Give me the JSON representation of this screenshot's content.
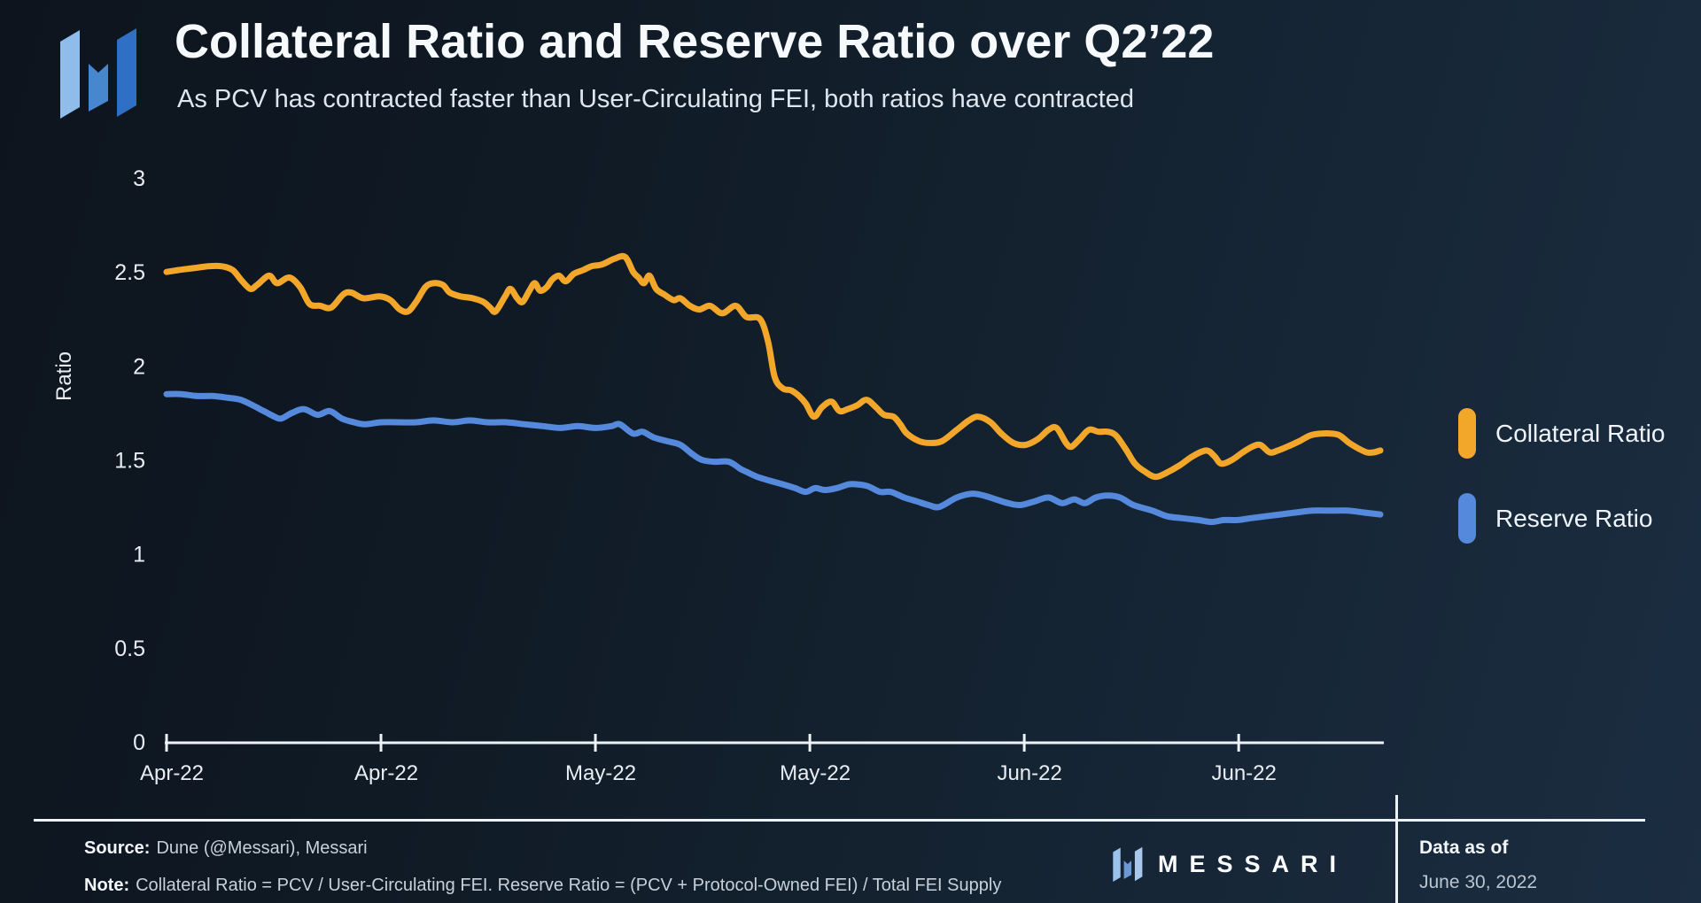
{
  "header": {
    "title": "Collateral Ratio and Reserve Ratio over Q2’22",
    "subtitle": "As PCV has contracted faster than User-Circulating FEI, both ratios have contracted"
  },
  "colors": {
    "collateral": "#F2A62A",
    "reserve": "#5589DC",
    "axis": "#EDF2F6",
    "tick_text": "#E7EDF2"
  },
  "chart_data": {
    "type": "line",
    "title": "Collateral Ratio and Reserve Ratio over Q2’22",
    "xlabel": "",
    "ylabel": "Ratio",
    "x_unit": "days since Apr 1 2022",
    "x_range": [
      0,
      90
    ],
    "ylim": [
      0,
      3
    ],
    "y_ticks": [
      0,
      0.5,
      1,
      1.5,
      2,
      2.5,
      3
    ],
    "x_tick_days": [
      0,
      15.9,
      31.8,
      47.7,
      63.6,
      79.5
    ],
    "x_tick_labels": [
      "Apr-22",
      "Apr-22",
      "May-22",
      "May-22",
      "Jun-22",
      "Jun-22"
    ],
    "grid": false,
    "legend_position": "right",
    "series": [
      {
        "name": "Collateral Ratio",
        "color": "#F2A62A",
        "points": [
          [
            0,
            2.5
          ],
          [
            0.9,
            2.51
          ],
          [
            2.0,
            2.52
          ],
          [
            3.1,
            2.53
          ],
          [
            4.1,
            2.53
          ],
          [
            4.9,
            2.51
          ],
          [
            5.5,
            2.46
          ],
          [
            6.2,
            2.41
          ],
          [
            6.7,
            2.43
          ],
          [
            7.6,
            2.48
          ],
          [
            8.2,
            2.44
          ],
          [
            9.1,
            2.47
          ],
          [
            9.9,
            2.42
          ],
          [
            10.6,
            2.33
          ],
          [
            11.4,
            2.32
          ],
          [
            12.2,
            2.31
          ],
          [
            13.1,
            2.38
          ],
          [
            13.7,
            2.39
          ],
          [
            14.6,
            2.36
          ],
          [
            15.8,
            2.37
          ],
          [
            16.6,
            2.35
          ],
          [
            17.3,
            2.3
          ],
          [
            17.9,
            2.29
          ],
          [
            18.5,
            2.34
          ],
          [
            19.2,
            2.42
          ],
          [
            19.8,
            2.44
          ],
          [
            20.5,
            2.43
          ],
          [
            21.0,
            2.39
          ],
          [
            21.8,
            2.37
          ],
          [
            22.7,
            2.36
          ],
          [
            23.5,
            2.34
          ],
          [
            24.0,
            2.31
          ],
          [
            24.4,
            2.29
          ],
          [
            25.1,
            2.37
          ],
          [
            25.5,
            2.41
          ],
          [
            26.0,
            2.36
          ],
          [
            26.4,
            2.34
          ],
          [
            26.9,
            2.4
          ],
          [
            27.3,
            2.44
          ],
          [
            27.7,
            2.4
          ],
          [
            28.2,
            2.42
          ],
          [
            28.6,
            2.46
          ],
          [
            29.1,
            2.48
          ],
          [
            29.6,
            2.45
          ],
          [
            30.2,
            2.49
          ],
          [
            30.9,
            2.51
          ],
          [
            31.5,
            2.53
          ],
          [
            32.3,
            2.54
          ],
          [
            33.2,
            2.57
          ],
          [
            34.0,
            2.58
          ],
          [
            34.6,
            2.5
          ],
          [
            35.0,
            2.47
          ],
          [
            35.4,
            2.44
          ],
          [
            35.8,
            2.48
          ],
          [
            36.3,
            2.41
          ],
          [
            36.9,
            2.38
          ],
          [
            37.6,
            2.35
          ],
          [
            38.1,
            2.36
          ],
          [
            38.8,
            2.32
          ],
          [
            39.5,
            2.3
          ],
          [
            40.3,
            2.32
          ],
          [
            41.2,
            2.28
          ],
          [
            42.2,
            2.32
          ],
          [
            43.0,
            2.26
          ],
          [
            44.0,
            2.25
          ],
          [
            44.6,
            2.13
          ],
          [
            45.1,
            1.94
          ],
          [
            45.7,
            1.88
          ],
          [
            46.3,
            1.87
          ],
          [
            46.9,
            1.84
          ],
          [
            47.4,
            1.8
          ],
          [
            48.0,
            1.73
          ],
          [
            48.6,
            1.78
          ],
          [
            49.3,
            1.81
          ],
          [
            49.9,
            1.76
          ],
          [
            50.5,
            1.77
          ],
          [
            51.2,
            1.79
          ],
          [
            51.9,
            1.82
          ],
          [
            52.6,
            1.78
          ],
          [
            53.2,
            1.74
          ],
          [
            53.9,
            1.73
          ],
          [
            54.4,
            1.69
          ],
          [
            54.9,
            1.64
          ],
          [
            55.8,
            1.6
          ],
          [
            56.6,
            1.59
          ],
          [
            57.5,
            1.6
          ],
          [
            58.6,
            1.66
          ],
          [
            59.5,
            1.71
          ],
          [
            60.2,
            1.73
          ],
          [
            61.1,
            1.7
          ],
          [
            61.9,
            1.64
          ],
          [
            62.8,
            1.59
          ],
          [
            63.7,
            1.58
          ],
          [
            64.6,
            1.61
          ],
          [
            65.4,
            1.66
          ],
          [
            66.0,
            1.67
          ],
          [
            66.7,
            1.59
          ],
          [
            67.1,
            1.57
          ],
          [
            67.7,
            1.61
          ],
          [
            68.4,
            1.66
          ],
          [
            69.1,
            1.65
          ],
          [
            69.8,
            1.65
          ],
          [
            70.4,
            1.63
          ],
          [
            71.1,
            1.56
          ],
          [
            71.8,
            1.48
          ],
          [
            72.5,
            1.44
          ],
          [
            73.3,
            1.41
          ],
          [
            74.1,
            1.43
          ],
          [
            75.1,
            1.47
          ],
          [
            76.1,
            1.52
          ],
          [
            77.1,
            1.55
          ],
          [
            77.7,
            1.52
          ],
          [
            78.2,
            1.48
          ],
          [
            79.0,
            1.5
          ],
          [
            79.8,
            1.54
          ],
          [
            80.5,
            1.57
          ],
          [
            81.1,
            1.58
          ],
          [
            81.8,
            1.54
          ],
          [
            82.4,
            1.55
          ],
          [
            83.1,
            1.57
          ],
          [
            84.0,
            1.6
          ],
          [
            84.8,
            1.63
          ],
          [
            85.6,
            1.64
          ],
          [
            86.4,
            1.64
          ],
          [
            87.0,
            1.63
          ],
          [
            87.7,
            1.59
          ],
          [
            88.4,
            1.56
          ],
          [
            89.0,
            1.54
          ],
          [
            89.5,
            1.54
          ],
          [
            90,
            1.55
          ]
        ]
      },
      {
        "name": "Reserve Ratio",
        "color": "#5589DC",
        "points": [
          [
            0,
            1.85
          ],
          [
            1.1,
            1.85
          ],
          [
            2.2,
            1.84
          ],
          [
            3.4,
            1.84
          ],
          [
            4.6,
            1.83
          ],
          [
            5.5,
            1.82
          ],
          [
            6.4,
            1.79
          ],
          [
            7.2,
            1.76
          ],
          [
            8.0,
            1.73
          ],
          [
            8.5,
            1.72
          ],
          [
            9.3,
            1.75
          ],
          [
            10.2,
            1.77
          ],
          [
            11.2,
            1.74
          ],
          [
            12.1,
            1.76
          ],
          [
            13.0,
            1.72
          ],
          [
            13.9,
            1.7
          ],
          [
            14.7,
            1.69
          ],
          [
            15.9,
            1.7
          ],
          [
            17.2,
            1.7
          ],
          [
            18.5,
            1.7
          ],
          [
            19.8,
            1.71
          ],
          [
            21.2,
            1.7
          ],
          [
            22.5,
            1.71
          ],
          [
            23.8,
            1.7
          ],
          [
            25.2,
            1.7
          ],
          [
            26.5,
            1.69
          ],
          [
            27.9,
            1.68
          ],
          [
            29.2,
            1.67
          ],
          [
            30.5,
            1.68
          ],
          [
            31.8,
            1.67
          ],
          [
            33.0,
            1.68
          ],
          [
            33.6,
            1.69
          ],
          [
            34.6,
            1.64
          ],
          [
            35.3,
            1.65
          ],
          [
            36.1,
            1.62
          ],
          [
            37.1,
            1.6
          ],
          [
            38.1,
            1.58
          ],
          [
            39.0,
            1.53
          ],
          [
            39.7,
            1.5
          ],
          [
            40.6,
            1.49
          ],
          [
            41.7,
            1.49
          ],
          [
            42.6,
            1.45
          ],
          [
            43.2,
            1.43
          ],
          [
            43.8,
            1.41
          ],
          [
            44.7,
            1.39
          ],
          [
            45.7,
            1.37
          ],
          [
            46.6,
            1.35
          ],
          [
            47.4,
            1.33
          ],
          [
            48.1,
            1.35
          ],
          [
            48.8,
            1.34
          ],
          [
            49.7,
            1.35
          ],
          [
            50.6,
            1.37
          ],
          [
            51.2,
            1.37
          ],
          [
            52.0,
            1.36
          ],
          [
            52.9,
            1.33
          ],
          [
            53.7,
            1.33
          ],
          [
            54.7,
            1.3
          ],
          [
            55.6,
            1.28
          ],
          [
            56.5,
            1.26
          ],
          [
            57.3,
            1.25
          ],
          [
            58.6,
            1.3
          ],
          [
            59.7,
            1.32
          ],
          [
            60.6,
            1.31
          ],
          [
            61.5,
            1.29
          ],
          [
            62.4,
            1.27
          ],
          [
            63.3,
            1.26
          ],
          [
            64.4,
            1.28
          ],
          [
            65.4,
            1.3
          ],
          [
            66.4,
            1.27
          ],
          [
            67.3,
            1.29
          ],
          [
            68.1,
            1.27
          ],
          [
            68.9,
            1.3
          ],
          [
            69.8,
            1.31
          ],
          [
            70.7,
            1.3
          ],
          [
            71.7,
            1.26
          ],
          [
            73.1,
            1.23
          ],
          [
            74.2,
            1.2
          ],
          [
            75.3,
            1.19
          ],
          [
            76.5,
            1.18
          ],
          [
            77.5,
            1.17
          ],
          [
            78.4,
            1.18
          ],
          [
            79.4,
            1.18
          ],
          [
            80.4,
            1.19
          ],
          [
            81.5,
            1.2
          ],
          [
            82.6,
            1.21
          ],
          [
            83.7,
            1.22
          ],
          [
            85.0,
            1.23
          ],
          [
            86.3,
            1.23
          ],
          [
            87.6,
            1.23
          ],
          [
            88.8,
            1.22
          ],
          [
            90,
            1.21
          ]
        ]
      }
    ]
  },
  "legend": {
    "items": [
      {
        "label": "Collateral Ratio",
        "color": "#F2A62A"
      },
      {
        "label": "Reserve Ratio",
        "color": "#5589DC"
      }
    ]
  },
  "footer": {
    "source_label": "Source:",
    "source_text": "Dune (@Messari), Messari",
    "note_label": "Note:",
    "note_text": "Collateral Ratio = PCV / User-Circulating FEI. Reserve Ratio = (PCV + Protocol-Owned FEI) / Total FEI Supply",
    "brand": "MESSARI",
    "data_as_of_label": "Data as of",
    "data_as_of_value": "June 30, 2022"
  }
}
